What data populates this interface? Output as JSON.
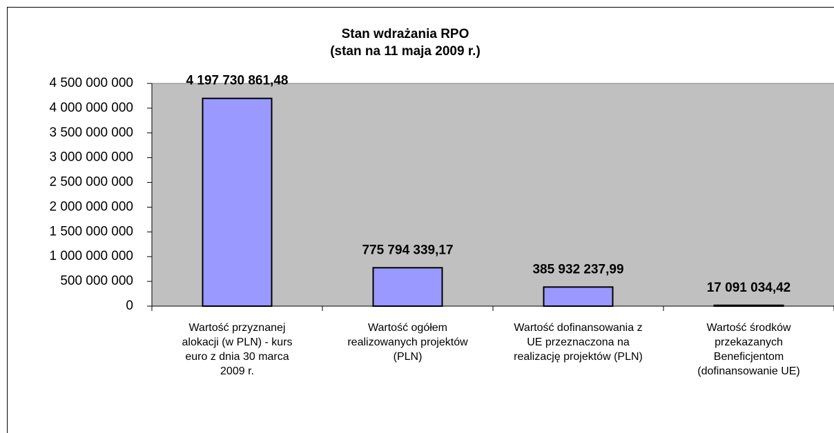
{
  "chart_data": {
    "type": "bar",
    "title": "Stan wdrażania RPO\n(stan na 11 maja 2009 r.)",
    "categories": [
      "Wartość przyznanej\nalokacji (w PLN) - kurs\neuro z dnia 30 marca\n2009 r.",
      "Wartość ogółem\nrealizowanych projektów\n(PLN)",
      "Wartość dofinansowania z\nUE przeznaczona na\nrealizację projektów (PLN)",
      "Wartość środków\nprzekazanych\nBeneficjentom\n(dofinansowanie UE)"
    ],
    "values": [
      4197730861.48,
      775794339.17,
      385932237.99,
      17091034.42
    ],
    "value_labels": [
      "4 197 730 861,48",
      "775 794 339,17",
      "385 932 237,99",
      "17 091 034,42"
    ],
    "color": "#9999ff",
    "ylim": [
      0,
      4500000000
    ],
    "yticks": [
      0,
      {
        "value": 500000000,
        "label": "500 000 000"
      },
      {
        "value": 1000000000,
        "label": "1 000 000 000"
      },
      {
        "value": 1500000000,
        "label": "1 500 000 000"
      },
      {
        "value": 2000000000,
        "label": "2 000 000 000"
      },
      {
        "value": 2500000000,
        "label": "2 500 000 000"
      },
      {
        "value": 3000000000,
        "label": "3 000 000 000"
      },
      {
        "value": 3500000000,
        "label": "3 500 000 000"
      },
      {
        "value": 4000000000,
        "label": "4 000 000 000"
      },
      {
        "value": 4500000000,
        "label": "4 500 000 000"
      }
    ],
    "grid": false
  }
}
